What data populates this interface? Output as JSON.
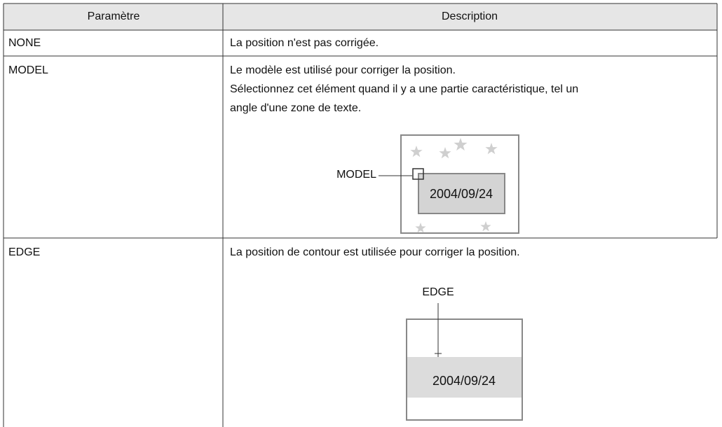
{
  "table": {
    "header": [
      "Paramètre",
      "Description"
    ],
    "rows": [
      {
        "parameter": "NONE",
        "description": [
          "La position n'est pas corrigée."
        ]
      },
      {
        "parameter": "MODEL",
        "description": [
          "Le modèle est utilisé pour corriger la position.",
          "Sélectionnez cet élément quand il y a une partie caractéristique, tel un",
          "angle d'une zone de texte."
        ],
        "figure": {
          "label": "MODEL",
          "date": "2004/09/24"
        }
      },
      {
        "parameter": "EDGE",
        "description": [
          "La position de contour est utilisée pour corriger la position."
        ],
        "figure": {
          "label": "EDGE",
          "date": "2004/09/24"
        }
      }
    ]
  }
}
